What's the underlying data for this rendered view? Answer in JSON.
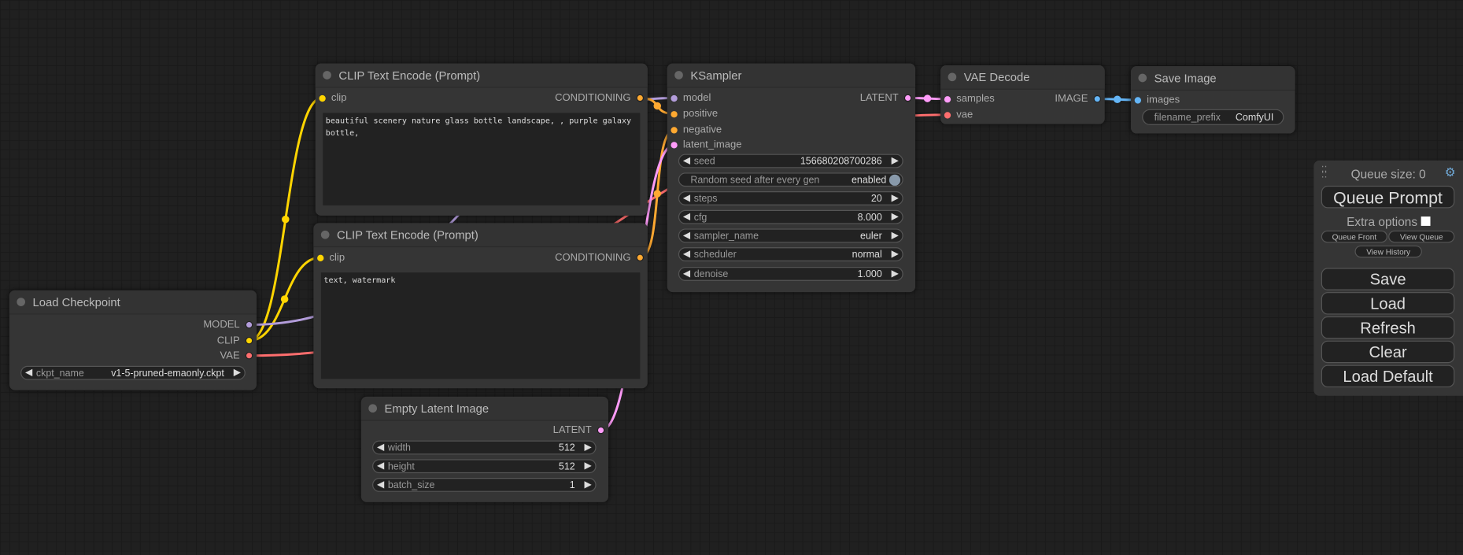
{
  "colors": {
    "clip": "#ffd500",
    "model": "#b39ddb",
    "vae": "#ff6e6e",
    "conditioning": "#ffa931",
    "latent": "#ff9cf9",
    "image": "#64b5f6"
  },
  "load_checkpoint": {
    "title": "Load Checkpoint",
    "outputs": [
      "MODEL",
      "CLIP",
      "VAE"
    ],
    "ckpt_name": {
      "label": "ckpt_name",
      "value": "v1-5-pruned-emaonly.ckpt"
    }
  },
  "clip_pos": {
    "title": "CLIP Text Encode (Prompt)",
    "input": "clip",
    "output": "CONDITIONING",
    "text": "beautiful scenery nature glass bottle landscape, , purple galaxy bottle,"
  },
  "clip_neg": {
    "title": "CLIP Text Encode (Prompt)",
    "input": "clip",
    "output": "CONDITIONING",
    "text": "text, watermark"
  },
  "empty_latent": {
    "title": "Empty Latent Image",
    "output": "LATENT",
    "widgets": [
      {
        "label": "width",
        "value": "512"
      },
      {
        "label": "height",
        "value": "512"
      },
      {
        "label": "batch_size",
        "value": "1"
      }
    ]
  },
  "ksampler": {
    "title": "KSampler",
    "inputs": [
      "model",
      "positive",
      "negative",
      "latent_image"
    ],
    "output": "LATENT",
    "seed": {
      "label": "seed",
      "value": "156680208700286"
    },
    "random_seed": {
      "label": "Random seed after every gen",
      "value": "enabled"
    },
    "widgets": [
      {
        "label": "steps",
        "value": "20"
      },
      {
        "label": "cfg",
        "value": "8.000"
      },
      {
        "label": "sampler_name",
        "value": "euler"
      },
      {
        "label": "scheduler",
        "value": "normal"
      },
      {
        "label": "denoise",
        "value": "1.000"
      }
    ]
  },
  "vae_decode": {
    "title": "VAE Decode",
    "inputs": [
      "samples",
      "vae"
    ],
    "output": "IMAGE"
  },
  "save_image": {
    "title": "Save Image",
    "input": "images",
    "filename_prefix": {
      "label": "filename_prefix",
      "value": "ComfyUI"
    }
  },
  "panel": {
    "queue_size": "Queue size: 0",
    "queue_prompt": "Queue Prompt",
    "extra_options": "Extra options",
    "queue_front": "Queue Front",
    "view_queue": "View Queue",
    "view_history": "View History",
    "save": "Save",
    "load": "Load",
    "refresh": "Refresh",
    "clear": "Clear",
    "load_default": "Load Default"
  }
}
